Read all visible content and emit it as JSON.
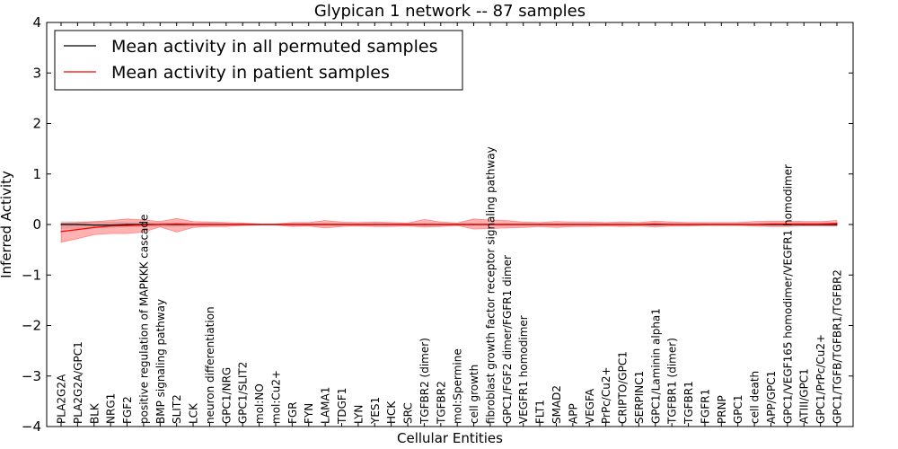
{
  "chart_data": {
    "type": "line",
    "title": "Glypican 1 network -- 87 samples",
    "xlabel": "Cellular Entities",
    "ylabel": "Inferred Activity",
    "ylim": [
      -4,
      4
    ],
    "yticks": [
      -4,
      -3,
      -2,
      -1,
      0,
      1,
      2,
      3,
      4
    ],
    "ytick_labels": [
      "−4",
      "−3",
      "−2",
      "−1",
      "0",
      "1",
      "2",
      "3",
      "4"
    ],
    "legend_position": "top-left",
    "categories": [
      "PLA2G2A",
      "PLA2G2A/GPC1",
      "BLK",
      "NRG1",
      "FGF2",
      "positive regulation of MAPKKK cascade",
      "BMP signaling pathway",
      "SLIT2",
      "LCK",
      "neuron differentiation",
      "GPC1/NRG",
      "GPC1/SLIT2",
      "mol:NO",
      "mol:Cu2+",
      "FGR",
      "FYN",
      "LAMA1",
      "TDGF1",
      "LYN",
      "YES1",
      "HCK",
      "SRC",
      "TGFBR2 (dimer)",
      "TGFBR2",
      "mol:Spermine",
      "cell growth",
      "fibroblast growth factor receptor signaling pathway",
      "GPC1/FGF2 dimer/FGFR1 dimer",
      "VEGFR1 homodimer",
      "FLT1",
      "SMAD2",
      "APP",
      "VEGFA",
      "PrPc/Cu2+",
      "CRIPTO/GPC1",
      "SERPINC1",
      "GPC1/Laminin alpha1",
      "TGFBR1 (dimer)",
      "TGFBR1",
      "FGFR1",
      "PRNP",
      "GPC1",
      "cell death",
      "APP/GPC1",
      "GPC1/VEGF165 homodimer/VEGFR1 homodimer",
      "ATIII/GPC1",
      "GPC1/PrPc/Cu2+",
      "GPC1/TGFB/TGFBR1/TGFBR2"
    ],
    "series": [
      {
        "name": "Mean activity in all permuted samples",
        "color": "#000000",
        "values": [
          0.0,
          0.0,
          -0.01,
          -0.01,
          0.0,
          0.0,
          0.0,
          0.0,
          0.0,
          0.0,
          0.0,
          0.0,
          0.0,
          0.0,
          0.0,
          0.0,
          0.0,
          0.0,
          0.0,
          0.0,
          0.0,
          0.0,
          0.0,
          0.0,
          0.0,
          0.0,
          0.0,
          0.0,
          0.0,
          0.0,
          0.0,
          0.0,
          0.0,
          0.0,
          0.0,
          0.0,
          0.0,
          0.0,
          0.0,
          0.0,
          0.0,
          0.0,
          0.0,
          0.0,
          0.0,
          0.0,
          0.0,
          0.0
        ],
        "band_lower": [
          -0.08,
          -0.08,
          -0.06,
          -0.06,
          -0.05,
          -0.04,
          -0.04,
          -0.04,
          -0.03,
          -0.03,
          -0.02,
          -0.02,
          -0.01,
          -0.01,
          -0.02,
          -0.02,
          -0.02,
          -0.02,
          -0.02,
          -0.02,
          -0.02,
          -0.02,
          -0.02,
          -0.02,
          -0.02,
          -0.02,
          -0.02,
          -0.02,
          -0.02,
          -0.02,
          -0.02,
          -0.02,
          -0.02,
          -0.02,
          -0.02,
          -0.02,
          -0.02,
          -0.02,
          -0.02,
          -0.02,
          -0.02,
          -0.02,
          -0.02,
          -0.02,
          -0.02,
          -0.02,
          -0.02,
          -0.03
        ],
        "band_upper": [
          0.06,
          0.06,
          0.05,
          0.05,
          0.04,
          0.04,
          0.03,
          0.03,
          0.03,
          0.03,
          0.02,
          0.02,
          0.01,
          0.01,
          0.02,
          0.02,
          0.02,
          0.02,
          0.02,
          0.02,
          0.02,
          0.02,
          0.02,
          0.02,
          0.02,
          0.02,
          0.02,
          0.02,
          0.02,
          0.02,
          0.02,
          0.02,
          0.02,
          0.02,
          0.02,
          0.02,
          0.02,
          0.02,
          0.02,
          0.02,
          0.02,
          0.02,
          0.02,
          0.02,
          0.02,
          0.02,
          0.02,
          0.03
        ]
      },
      {
        "name": "Mean activity in patient samples",
        "color": "#ff0000",
        "values": [
          -0.14,
          -0.1,
          -0.06,
          -0.03,
          -0.02,
          -0.01,
          0.0,
          0.01,
          0.0,
          0.0,
          0.0,
          0.0,
          0.0,
          0.0,
          0.0,
          0.0,
          0.0,
          0.0,
          0.0,
          0.0,
          0.0,
          0.0,
          0.0,
          0.0,
          0.0,
          0.0,
          0.0,
          0.0,
          0.0,
          0.0,
          0.0,
          0.0,
          0.0,
          0.0,
          0.0,
          0.0,
          0.01,
          0.0,
          0.0,
          0.0,
          0.0,
          0.0,
          0.0,
          0.01,
          0.01,
          0.01,
          0.01,
          0.02
        ],
        "band_lower": [
          -0.35,
          -0.28,
          -0.2,
          -0.18,
          -0.18,
          -0.15,
          -0.05,
          -0.15,
          -0.06,
          -0.04,
          -0.04,
          -0.02,
          -0.01,
          -0.01,
          -0.04,
          -0.03,
          -0.07,
          -0.04,
          -0.03,
          -0.04,
          -0.04,
          -0.03,
          -0.05,
          -0.04,
          -0.02,
          -0.09,
          -0.08,
          -0.07,
          -0.06,
          -0.04,
          -0.06,
          -0.04,
          -0.04,
          -0.03,
          -0.04,
          -0.03,
          -0.05,
          -0.03,
          -0.03,
          -0.02,
          -0.02,
          -0.02,
          -0.03,
          -0.04,
          -0.04,
          -0.03,
          -0.03,
          -0.03
        ],
        "band_upper": [
          0.03,
          0.04,
          0.06,
          0.08,
          0.11,
          0.09,
          0.06,
          0.12,
          0.06,
          0.05,
          0.04,
          0.03,
          0.01,
          0.01,
          0.04,
          0.04,
          0.08,
          0.05,
          0.04,
          0.05,
          0.04,
          0.03,
          0.1,
          0.05,
          0.03,
          0.11,
          0.09,
          0.08,
          0.05,
          0.04,
          0.06,
          0.05,
          0.05,
          0.04,
          0.05,
          0.04,
          0.07,
          0.05,
          0.04,
          0.04,
          0.04,
          0.04,
          0.06,
          0.07,
          0.07,
          0.06,
          0.06,
          0.08
        ]
      }
    ]
  }
}
